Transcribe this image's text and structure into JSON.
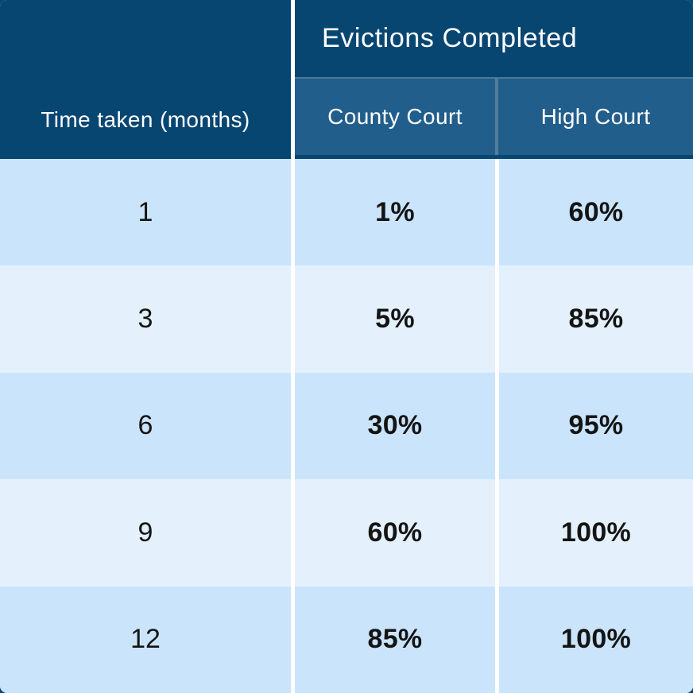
{
  "table": {
    "group_header": "Evictions Completed",
    "row_header_label": "Time taken (months)",
    "column_headers": {
      "county_court": "County Court",
      "high_court": "High Court"
    },
    "rows": [
      {
        "months": "1",
        "county_court": "1%",
        "high_court": "60%"
      },
      {
        "months": "3",
        "county_court": "5%",
        "high_court": "85%"
      },
      {
        "months": "6",
        "county_court": "30%",
        "high_court": "95%"
      },
      {
        "months": "9",
        "county_court": "60%",
        "high_court": "100%"
      },
      {
        "months": "12",
        "county_court": "85%",
        "high_court": "100%"
      }
    ]
  },
  "chart_data": {
    "type": "table",
    "title": "Evictions Completed",
    "columns": [
      "Time taken (months)",
      "County Court",
      "High Court"
    ],
    "rows": [
      [
        "1",
        "1%",
        "60%"
      ],
      [
        "3",
        "5%",
        "85%"
      ],
      [
        "6",
        "30%",
        "95%"
      ],
      [
        "9",
        "60%",
        "100%"
      ],
      [
        "12",
        "85%",
        "100%"
      ]
    ],
    "series": [
      {
        "name": "County Court",
        "x": [
          1,
          3,
          6,
          9,
          12
        ],
        "values": [
          1,
          5,
          30,
          60,
          85
        ]
      },
      {
        "name": "High Court",
        "x": [
          1,
          3,
          6,
          9,
          12
        ],
        "values": [
          60,
          85,
          95,
          100,
          100
        ]
      }
    ],
    "value_unit": "percent"
  },
  "colors": {
    "header_navy": "#084672",
    "subheader_blue": "#215e8c",
    "row_light_a": "#cae4fc",
    "row_light_b": "#e4f1fd",
    "divider_white": "#ffffff",
    "body_text": "#141414",
    "header_text": "#ffffff"
  }
}
